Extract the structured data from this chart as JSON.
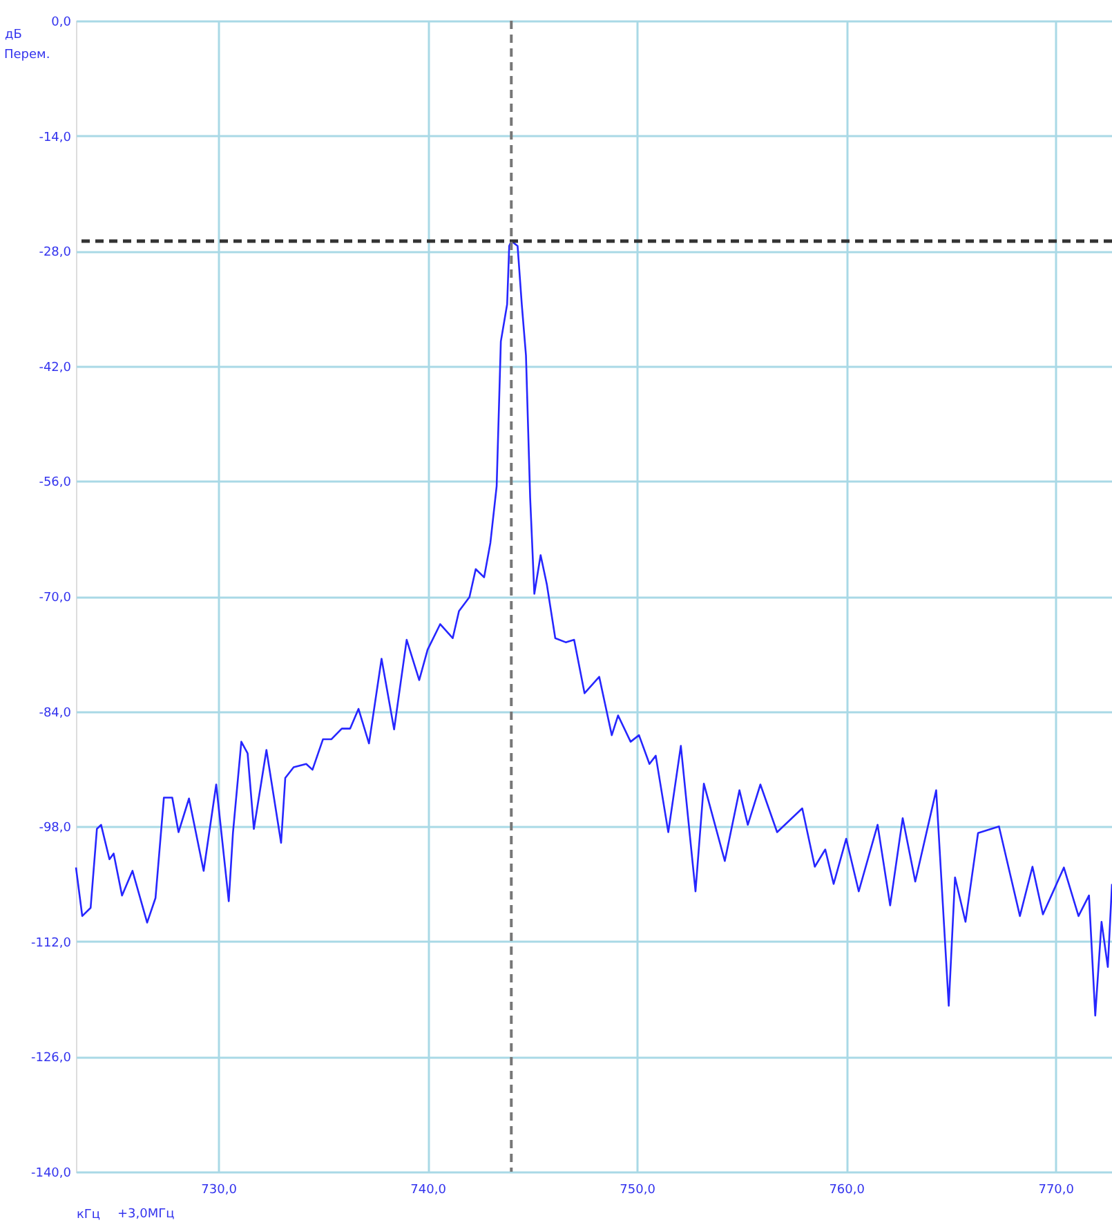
{
  "chart_data": {
    "type": "line",
    "xlabel": "кГц",
    "ylabel": "дБ",
    "annotations": [
      "Перем.",
      "+3,0МГц"
    ],
    "x": [
      723.2,
      723.5,
      723.9,
      724.2,
      724.4,
      724.8,
      725.0,
      725.4,
      725.9,
      726.6,
      727.0,
      727.4,
      727.8,
      728.1,
      728.6,
      729.3,
      729.9,
      730.5,
      730.7,
      731.1,
      731.4,
      731.7,
      732.3,
      733.0,
      733.2,
      733.6,
      734.2,
      734.5,
      735.0,
      735.4,
      735.9,
      736.3,
      736.7,
      737.2,
      737.8,
      738.4,
      739.0,
      739.6,
      740.0,
      740.6,
      741.2,
      741.5,
      742.0,
      742.3,
      742.7,
      743.0,
      743.3,
      743.5,
      743.8,
      743.9,
      744.0,
      744.3,
      744.5,
      744.7,
      744.9,
      745.1,
      745.4,
      745.7,
      746.1,
      746.6,
      747.0,
      747.5,
      748.2,
      748.8,
      749.1,
      749.7,
      750.1,
      750.6,
      750.9,
      751.5,
      752.1,
      752.8,
      753.2,
      754.2,
      754.9,
      755.3,
      755.9,
      756.7,
      757.9,
      758.5,
      759.0,
      759.4,
      760.0,
      760.6,
      761.5,
      762.1,
      762.7,
      763.3,
      764.3,
      764.9,
      765.2,
      765.7,
      766.3,
      767.3,
      768.3,
      768.9,
      769.4,
      770.4,
      771.1,
      771.6,
      771.9,
      772.2,
      772.5,
      772.7
    ],
    "series": [
      {
        "color": "#2626ff",
        "values": [
          -103.0,
          -108.9,
          -107.9,
          -98.3,
          -97.8,
          -102.0,
          -101.3,
          -106.4,
          -103.4,
          -109.7,
          -106.7,
          -94.5,
          -94.5,
          -98.7,
          -94.6,
          -103.4,
          -92.9,
          -107.1,
          -98.8,
          -87.7,
          -89.1,
          -98.3,
          -88.7,
          -100.0,
          -92.1,
          -90.8,
          -90.4,
          -91.1,
          -87.4,
          -87.4,
          -86.1,
          -86.1,
          -83.7,
          -87.9,
          -77.6,
          -86.2,
          -75.3,
          -80.2,
          -76.5,
          -73.4,
          -75.1,
          -71.8,
          -70.1,
          -66.7,
          -67.7,
          -63.5,
          -56.6,
          -39.0,
          -34.5,
          -27.4,
          -26.8,
          -27.4,
          -34.5,
          -40.7,
          -58.0,
          -69.7,
          -65.0,
          -68.6,
          -75.1,
          -75.6,
          -75.3,
          -81.8,
          -79.8,
          -86.9,
          -84.5,
          -87.7,
          -86.9,
          -90.4,
          -89.4,
          -98.7,
          -88.2,
          -105.9,
          -92.8,
          -102.2,
          -93.6,
          -97.8,
          -92.9,
          -98.7,
          -95.8,
          -102.9,
          -100.8,
          -105.0,
          -99.5,
          -105.9,
          -97.8,
          -107.6,
          -97.0,
          -104.7,
          -93.6,
          -119.8,
          -104.2,
          -109.6,
          -98.8,
          -98.0,
          -108.9,
          -102.9,
          -108.7,
          -103.0,
          -108.9,
          -106.4,
          -121.0,
          -109.6,
          -115.1,
          -105.0
        ]
      }
    ],
    "xlim": [
      723.2,
      772.7
    ],
    "ylim": [
      -140,
      0
    ],
    "xticks": [
      {
        "value": 730,
        "label": "730,0"
      },
      {
        "value": 740,
        "label": "740,0"
      },
      {
        "value": 750,
        "label": "750,0"
      },
      {
        "value": 760,
        "label": "760,0"
      },
      {
        "value": 770,
        "label": "770,0"
      }
    ],
    "yticks": [
      {
        "value": 0,
        "label": "0,0"
      },
      {
        "value": -14,
        "label": "-14,0"
      },
      {
        "value": -28,
        "label": "-28,0"
      },
      {
        "value": -42,
        "label": "-42,0"
      },
      {
        "value": -56,
        "label": "-56,0"
      },
      {
        "value": -70,
        "label": "-70,0"
      },
      {
        "value": -84,
        "label": "-84,0"
      },
      {
        "value": -98,
        "label": "-98,0"
      },
      {
        "value": -112,
        "label": "-112,0"
      },
      {
        "value": -126,
        "label": "-126,0"
      },
      {
        "value": -140,
        "label": "-140,0"
      }
    ],
    "ref_lines": [
      {
        "axis": "y",
        "value": -26.8,
        "color": "#333333",
        "line_style": "dashed"
      },
      {
        "axis": "x",
        "value": 744.0,
        "color": "#777777",
        "line_style": "dashed"
      }
    ],
    "grid": true,
    "marker": "none",
    "line_style": "solid"
  }
}
